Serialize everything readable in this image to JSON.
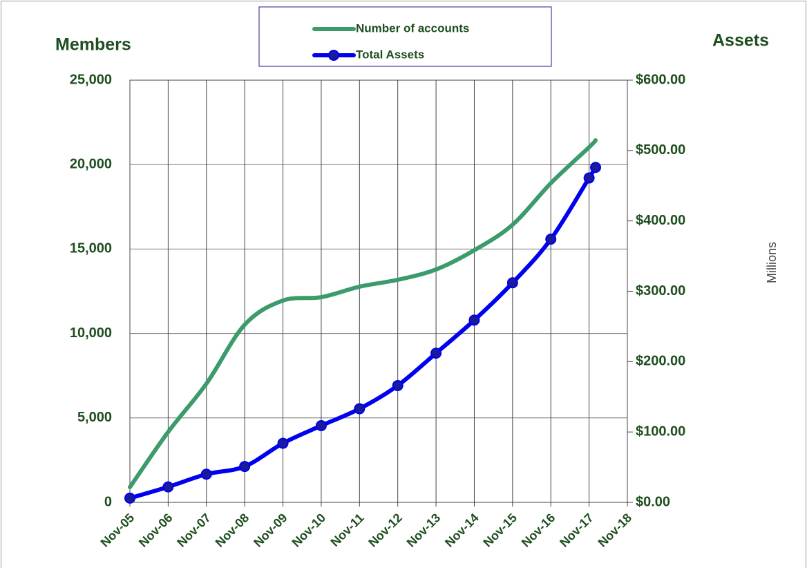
{
  "chart_data": {
    "type": "line",
    "y_title": "Members",
    "y2_title": "Assets",
    "y2_unit_label": "Millions",
    "x": [
      2005.83,
      2006.83,
      2007.83,
      2008.83,
      2009.83,
      2010.83,
      2011.83,
      2012.83,
      2013.83,
      2014.83,
      2015.83,
      2016.83,
      2017.83,
      2018.0
    ],
    "xlim": [
      2005.83,
      2018.83
    ],
    "xticks": [
      {
        "value": 2005.83,
        "label": "Nov-05"
      },
      {
        "value": 2006.83,
        "label": "Nov-06"
      },
      {
        "value": 2007.83,
        "label": "Nov-07"
      },
      {
        "value": 2008.83,
        "label": "Nov-08"
      },
      {
        "value": 2009.83,
        "label": "Nov-09"
      },
      {
        "value": 2010.83,
        "label": "Nov-10"
      },
      {
        "value": 2011.83,
        "label": "Nov-11"
      },
      {
        "value": 2012.83,
        "label": "Nov-12"
      },
      {
        "value": 2013.83,
        "label": "Nov-13"
      },
      {
        "value": 2014.83,
        "label": "Nov-14"
      },
      {
        "value": 2015.83,
        "label": "Nov-15"
      },
      {
        "value": 2016.83,
        "label": "Nov-16"
      },
      {
        "value": 2017.83,
        "label": "Nov-17"
      },
      {
        "value": 2018.83,
        "label": "Nov-18"
      }
    ],
    "ylim": [
      0,
      25000
    ],
    "yticks": [
      0,
      {
        "value": 5000,
        "label": "5,000"
      },
      {
        "value": 10000,
        "label": "10,000"
      },
      {
        "value": 15000,
        "label": "15,000"
      },
      {
        "value": 20000,
        "label": "20,000"
      },
      {
        "value": 25000,
        "label": "25,000"
      }
    ],
    "y2lim": [
      0,
      600
    ],
    "y2ticks": [
      {
        "value": 0,
        "label": "$0.00"
      },
      {
        "value": 100,
        "label": "$100.00"
      },
      {
        "value": 200,
        "label": "$200.00"
      },
      {
        "value": 300,
        "label": "$300.00"
      },
      {
        "value": 400,
        "label": "$400.00"
      },
      {
        "value": 500,
        "label": "$500.00"
      },
      {
        "value": 600,
        "label": "$600.00"
      }
    ],
    "grid": true,
    "legend": "top",
    "series": [
      {
        "name": "Number of accounts",
        "color": "#3c9b6b",
        "axis": "y",
        "marker": false,
        "values": [
          900,
          4170,
          7030,
          10520,
          11950,
          12150,
          12770,
          13180,
          13790,
          14930,
          16440,
          18900,
          21030,
          21440
        ]
      },
      {
        "name": "Total Assets",
        "color": "#0000ee",
        "axis": "y2",
        "marker": true,
        "values": [
          6,
          22,
          40,
          51,
          84,
          109,
          133,
          166,
          212,
          259,
          312,
          374,
          461,
          476
        ]
      }
    ]
  }
}
